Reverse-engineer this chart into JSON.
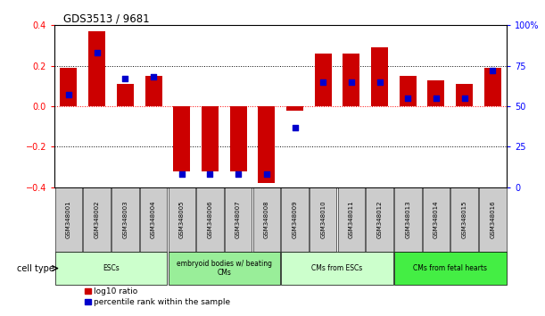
{
  "title": "GDS3513 / 9681",
  "samples": [
    "GSM348001",
    "GSM348002",
    "GSM348003",
    "GSM348004",
    "GSM348005",
    "GSM348006",
    "GSM348007",
    "GSM348008",
    "GSM348009",
    "GSM348010",
    "GSM348011",
    "GSM348012",
    "GSM348013",
    "GSM348014",
    "GSM348015",
    "GSM348016"
  ],
  "log10_ratio": [
    0.19,
    0.37,
    0.11,
    0.15,
    -0.32,
    -0.32,
    -0.32,
    -0.38,
    -0.02,
    0.26,
    0.26,
    0.29,
    0.15,
    0.13,
    0.11,
    0.19
  ],
  "percentile_rank": [
    57,
    83,
    67,
    68,
    8,
    8,
    8,
    8,
    37,
    65,
    65,
    65,
    55,
    55,
    55,
    72
  ],
  "bar_color_red": "#cc0000",
  "bar_color_blue": "#0000cc",
  "ylim_left": [
    -0.4,
    0.4
  ],
  "ylim_right": [
    0,
    100
  ],
  "yticks_left": [
    -0.4,
    -0.2,
    0.0,
    0.2,
    0.4
  ],
  "yticks_right": [
    0,
    25,
    50,
    75,
    100
  ],
  "ytick_labels_right": [
    "0",
    "25",
    "50",
    "75",
    "100%"
  ],
  "cell_type_groups": [
    {
      "label": "ESCs",
      "start": 0,
      "end": 3,
      "color": "#ccffcc"
    },
    {
      "label": "embryoid bodies w/ beating\nCMs",
      "start": 4,
      "end": 7,
      "color": "#99ee99"
    },
    {
      "label": "CMs from ESCs",
      "start": 8,
      "end": 11,
      "color": "#ccffcc"
    },
    {
      "label": "CMs from fetal hearts",
      "start": 12,
      "end": 15,
      "color": "#44ee44"
    }
  ],
  "legend_red_label": "log10 ratio",
  "legend_blue_label": "percentile rank within the sample",
  "cell_type_label": "cell type",
  "bar_width": 0.6
}
